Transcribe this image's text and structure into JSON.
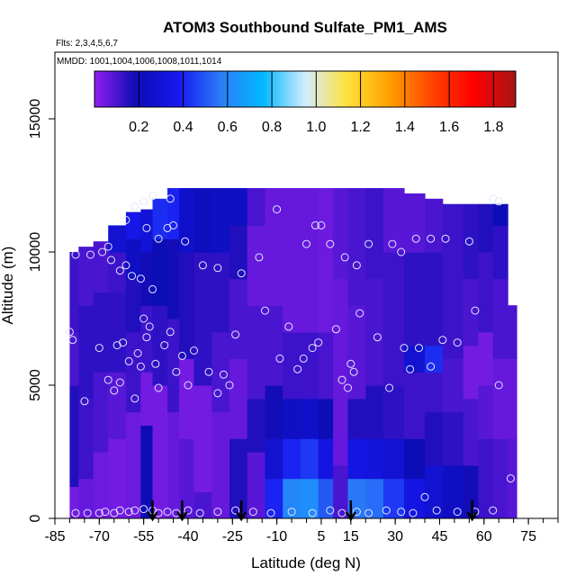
{
  "chart_data": {
    "type": "heatmap",
    "title": "ATOM3 Southbound Sulfate_PM1_AMS",
    "flights_label": "Flts: 2,3,4,5,6,7",
    "dates_label": "MMDD: 1001,1004,1006,1008,1011,1014",
    "xlabel": "Latitude (deg N)",
    "ylabel": "Altitude (m)",
    "xlim": [
      -85,
      85
    ],
    "ylim": [
      0,
      17500
    ],
    "x_ticks": [
      -85,
      -70,
      -55,
      -40,
      -25,
      -10,
      5,
      15,
      30,
      45,
      60,
      75
    ],
    "y_ticks": [
      0,
      5000,
      10000,
      15000
    ],
    "colorbar": {
      "range": [
        0,
        1.9
      ],
      "tick_values": [
        0.2,
        0.4,
        0.6,
        0.8,
        1.0,
        1.2,
        1.4,
        1.6,
        1.8
      ],
      "tick_labels": [
        "0.2",
        "0.4",
        "0.6",
        "0.8",
        "1.0",
        "1.2",
        "1.4",
        "1.6",
        "1.8"
      ],
      "colors": [
        "#8f1ff0",
        "#0c0cb4",
        "#1818f0",
        "#2a7df8",
        "#00b8ff",
        "#d2ecff",
        "#ffe23a",
        "#ffa000",
        "#ff4400",
        "#ff0000",
        "#a81414"
      ]
    },
    "profile_arrows_lat": [
      -52,
      -42,
      -22,
      15,
      56
    ],
    "columns": [
      {
        "x0": -80,
        "x1": -77,
        "ymax": 10000,
        "bands": [
          [
            0,
            0.04
          ],
          [
            1200,
            0.16
          ],
          [
            5000,
            0.1
          ],
          [
            7000,
            0.12
          ]
        ]
      },
      {
        "x0": -77,
        "x1": -72,
        "ymax": 10200,
        "bands": [
          [
            0,
            0.06
          ],
          [
            1500,
            0.12
          ],
          [
            4500,
            0.14
          ],
          [
            8000,
            0.1
          ]
        ]
      },
      {
        "x0": -72,
        "x1": -67,
        "ymax": 10400,
        "bands": [
          [
            0,
            0.05
          ],
          [
            2500,
            0.1
          ],
          [
            5500,
            0.14
          ],
          [
            8500,
            0.1
          ]
        ]
      },
      {
        "x0": -67,
        "x1": -61,
        "ymax": 11000,
        "bands": [
          [
            0,
            0.04
          ],
          [
            3000,
            0.08
          ],
          [
            5500,
            0.14
          ],
          [
            8500,
            0.12
          ],
          [
            10000,
            0.28
          ]
        ]
      },
      {
        "x0": -61,
        "x1": -56,
        "ymax": 11500,
        "bands": [
          [
            0,
            0.05
          ],
          [
            4000,
            0.12
          ],
          [
            7000,
            0.16
          ],
          [
            9000,
            0.24
          ],
          [
            10500,
            0.35
          ]
        ]
      },
      {
        "x0": -56,
        "x1": -52,
        "ymax": 11600,
        "bands": [
          [
            0,
            0.2
          ],
          [
            3500,
            0.04
          ],
          [
            5500,
            0.12
          ],
          [
            8000,
            0.18
          ],
          [
            10000,
            0.3
          ]
        ]
      },
      {
        "x0": -52,
        "x1": -47,
        "ymax": 12000,
        "bands": [
          [
            0,
            0.04
          ],
          [
            5000,
            0.14
          ],
          [
            8000,
            0.2
          ],
          [
            10500,
            0.42
          ]
        ]
      },
      {
        "x0": -47,
        "x1": -43,
        "ymax": 12400,
        "bands": [
          [
            0,
            0.06
          ],
          [
            4000,
            0.12
          ],
          [
            7500,
            0.18
          ],
          [
            10500,
            0.4
          ]
        ]
      },
      {
        "x0": -43,
        "x1": -38,
        "ymax": 12400,
        "bands": [
          [
            0,
            0.08
          ],
          [
            3000,
            0.04
          ],
          [
            6000,
            0.16
          ],
          [
            10000,
            0.26
          ]
        ]
      },
      {
        "x0": -38,
        "x1": -32,
        "ymax": 12400,
        "bands": [
          [
            0,
            0.1
          ],
          [
            1000,
            0.04
          ],
          [
            5000,
            0.14
          ],
          [
            10000,
            0.22
          ]
        ]
      },
      {
        "x0": -32,
        "x1": -26,
        "ymax": 12400,
        "bands": [
          [
            0,
            0.06
          ],
          [
            4000,
            0.1
          ],
          [
            7000,
            0.14
          ],
          [
            10000,
            0.24
          ]
        ]
      },
      {
        "x0": -26,
        "x1": -20,
        "ymax": 12400,
        "bands": [
          [
            0,
            0.16
          ],
          [
            3000,
            0.06
          ],
          [
            6000,
            0.1
          ],
          [
            9000,
            0.16
          ],
          [
            11000,
            0.24
          ]
        ]
      },
      {
        "x0": -20,
        "x1": -14,
        "ymax": 12400,
        "bands": [
          [
            0,
            0.08
          ],
          [
            2500,
            0.16
          ],
          [
            4500,
            0.1
          ],
          [
            8000,
            0.06
          ],
          [
            11000,
            0.1
          ]
        ]
      },
      {
        "x0": -14,
        "x1": -8,
        "ymax": 12400,
        "bands": [
          [
            0,
            0.4
          ],
          [
            1500,
            0.28
          ],
          [
            3000,
            0.18
          ],
          [
            5000,
            0.1
          ],
          [
            8000,
            0.06
          ]
        ]
      },
      {
        "x0": -8,
        "x1": -2,
        "ymax": 12400,
        "bands": [
          [
            0,
            0.6
          ],
          [
            1500,
            0.4
          ],
          [
            3000,
            0.24
          ],
          [
            4500,
            0.12
          ],
          [
            7000,
            0.06
          ]
        ]
      },
      {
        "x0": -2,
        "x1": 4,
        "ymax": 12400,
        "bands": [
          [
            0,
            0.62
          ],
          [
            1500,
            0.44
          ],
          [
            3000,
            0.26
          ],
          [
            4500,
            0.12
          ],
          [
            7000,
            0.06
          ]
        ]
      },
      {
        "x0": 4,
        "x1": 9,
        "ymax": 12400,
        "bands": [
          [
            0,
            0.5
          ],
          [
            1500,
            0.34
          ],
          [
            3000,
            0.2
          ],
          [
            4500,
            0.1
          ],
          [
            7000,
            0.05
          ]
        ]
      },
      {
        "x0": 9,
        "x1": 14,
        "ymax": 12400,
        "bands": [
          [
            0,
            0.1
          ],
          [
            2000,
            0.06
          ],
          [
            5000,
            0.06
          ],
          [
            9000,
            0.08
          ]
        ]
      },
      {
        "x0": 14,
        "x1": 20,
        "ymax": 12400,
        "bands": [
          [
            0,
            0.56
          ],
          [
            1500,
            0.34
          ],
          [
            3000,
            0.16
          ],
          [
            4500,
            0.08
          ],
          [
            8000,
            0.1
          ]
        ]
      },
      {
        "x0": 20,
        "x1": 26,
        "ymax": 12400,
        "bands": [
          [
            0,
            0.54
          ],
          [
            1500,
            0.32
          ],
          [
            3000,
            0.16
          ],
          [
            5000,
            0.1
          ],
          [
            9000,
            0.12
          ]
        ]
      },
      {
        "x0": 26,
        "x1": 33,
        "ymax": 12400,
        "bands": [
          [
            0,
            0.44
          ],
          [
            1500,
            0.28
          ],
          [
            3000,
            0.14
          ],
          [
            5000,
            0.12
          ],
          [
            10000,
            0.08
          ]
        ]
      },
      {
        "x0": 33,
        "x1": 40,
        "ymax": 12200,
        "bands": [
          [
            0,
            0.34
          ],
          [
            1500,
            0.2
          ],
          [
            3000,
            0.12
          ],
          [
            5500,
            0.28
          ],
          [
            6500,
            0.14
          ],
          [
            10000,
            0.08
          ]
        ]
      },
      {
        "x0": 40,
        "x1": 46,
        "ymax": 12000,
        "bands": [
          [
            0,
            0.28
          ],
          [
            2000,
            0.16
          ],
          [
            4000,
            0.12
          ],
          [
            5500,
            0.42
          ],
          [
            6500,
            0.14
          ],
          [
            10000,
            0.1
          ]
        ]
      },
      {
        "x0": 46,
        "x1": 53,
        "ymax": 11800,
        "bands": [
          [
            0,
            0.24
          ],
          [
            2000,
            0.14
          ],
          [
            4000,
            0.1
          ],
          [
            6000,
            0.12
          ],
          [
            10000,
            0.12
          ]
        ]
      },
      {
        "x0": 53,
        "x1": 58,
        "ymax": 11800,
        "bands": [
          [
            0,
            0.18
          ],
          [
            2000,
            0.1
          ],
          [
            4500,
            0.04
          ],
          [
            6500,
            0.1
          ],
          [
            9000,
            0.14
          ]
        ]
      },
      {
        "x0": 58,
        "x1": 63,
        "ymax": 11800,
        "bands": [
          [
            0,
            0.12
          ],
          [
            3000,
            0.08
          ],
          [
            5000,
            0.04
          ],
          [
            7000,
            0.12
          ],
          [
            10000,
            0.16
          ]
        ]
      },
      {
        "x0": 63,
        "x1": 68,
        "ymax": 11800,
        "bands": [
          [
            0,
            0.1
          ],
          [
            3000,
            0.06
          ],
          [
            6000,
            0.1
          ],
          [
            9000,
            0.14
          ],
          [
            11000,
            0.2
          ]
        ]
      },
      {
        "x0": 68,
        "x1": 71,
        "ymax": 8000,
        "bands": [
          [
            0,
            0.08
          ],
          [
            3000,
            0.06
          ],
          [
            6000,
            0.1
          ]
        ]
      }
    ],
    "observations": [
      [
        -80,
        7000
      ],
      [
        -79,
        6700
      ],
      [
        -75,
        4400
      ],
      [
        -70,
        6400
      ],
      [
        -67,
        5200
      ],
      [
        -65,
        4800
      ],
      [
        -64,
        6500
      ],
      [
        -63,
        5100
      ],
      [
        -62,
        6600
      ],
      [
        -60,
        5900
      ],
      [
        -58,
        4500
      ],
      [
        -57,
        6200
      ],
      [
        -56,
        5700
      ],
      [
        -55,
        7500
      ],
      [
        -54,
        6800
      ],
      [
        -53,
        7200
      ],
      [
        -51,
        5800
      ],
      [
        -50,
        4900
      ],
      [
        -48,
        6500
      ],
      [
        -46,
        7000
      ],
      [
        -44,
        5500
      ],
      [
        -42,
        6100
      ],
      [
        -40,
        5000
      ],
      [
        -38,
        6300
      ],
      [
        -78,
        9900
      ],
      [
        -73,
        9900
      ],
      [
        -69,
        10000
      ],
      [
        -67,
        10200
      ],
      [
        -66,
        9700
      ],
      [
        -63,
        9300
      ],
      [
        -61,
        9500
      ],
      [
        -59,
        9100
      ],
      [
        -56,
        9000
      ],
      [
        -54,
        10900
      ],
      [
        -52,
        8600
      ],
      [
        -50,
        10500
      ],
      [
        -47,
        10900
      ],
      [
        -45,
        11000
      ],
      [
        -41,
        10400
      ],
      [
        -35,
        9500
      ],
      [
        -30,
        9400
      ],
      [
        -22,
        9200
      ],
      [
        -16,
        9800
      ],
      [
        -61,
        11200
      ],
      [
        -58,
        11700
      ],
      [
        -55,
        11900
      ],
      [
        -52,
        12100
      ],
      [
        -46,
        12000
      ],
      [
        -33,
        5500
      ],
      [
        -30,
        4700
      ],
      [
        -28,
        5400
      ],
      [
        -26,
        5000
      ],
      [
        -24,
        6900
      ],
      [
        -14,
        7800
      ],
      [
        -9,
        6000
      ],
      [
        -6,
        7200
      ],
      [
        -3,
        5600
      ],
      [
        -1,
        6000
      ],
      [
        2,
        6400
      ],
      [
        4,
        6600
      ],
      [
        10,
        7100
      ],
      [
        12,
        5200
      ],
      [
        14,
        4900
      ],
      [
        15,
        5800
      ],
      [
        16,
        5500
      ],
      [
        18,
        7700
      ],
      [
        24,
        6800
      ],
      [
        28,
        4900
      ],
      [
        33,
        6400
      ],
      [
        35,
        5600
      ],
      [
        38,
        6400
      ],
      [
        42,
        5700
      ],
      [
        46,
        6700
      ],
      [
        51,
        6600
      ],
      [
        57,
        7800
      ],
      [
        65,
        5000
      ],
      [
        -10,
        11600
      ],
      [
        0,
        10300
      ],
      [
        3,
        11000
      ],
      [
        5,
        11000
      ],
      [
        8,
        10300
      ],
      [
        13,
        9800
      ],
      [
        17,
        9500
      ],
      [
        21,
        10300
      ],
      [
        29,
        10300
      ],
      [
        32,
        10000
      ],
      [
        37,
        10500
      ],
      [
        42,
        10500
      ],
      [
        47,
        10500
      ],
      [
        55,
        10400
      ],
      [
        63,
        12000
      ],
      [
        65,
        11900
      ],
      [
        -78,
        200
      ],
      [
        -74,
        200
      ],
      [
        -70,
        200
      ],
      [
        -68,
        250
      ],
      [
        -65,
        200
      ],
      [
        -63,
        300
      ],
      [
        -60,
        250
      ],
      [
        -58,
        300
      ],
      [
        -55,
        350
      ],
      [
        -52,
        300
      ],
      [
        -50,
        200
      ],
      [
        -47,
        250
      ],
      [
        -44,
        200
      ],
      [
        -40,
        300
      ],
      [
        -36,
        200
      ],
      [
        -30,
        250
      ],
      [
        -24,
        300
      ],
      [
        -18,
        250
      ],
      [
        -12,
        200
      ],
      [
        -5,
        250
      ],
      [
        2,
        200
      ],
      [
        8,
        300
      ],
      [
        12,
        200
      ],
      [
        17,
        250
      ],
      [
        21,
        200
      ],
      [
        27,
        300
      ],
      [
        32,
        250
      ],
      [
        36,
        200
      ],
      [
        40,
        800
      ],
      [
        44,
        300
      ],
      [
        51,
        250
      ],
      [
        57,
        250
      ],
      [
        63,
        300
      ],
      [
        69,
        1500
      ]
    ]
  }
}
